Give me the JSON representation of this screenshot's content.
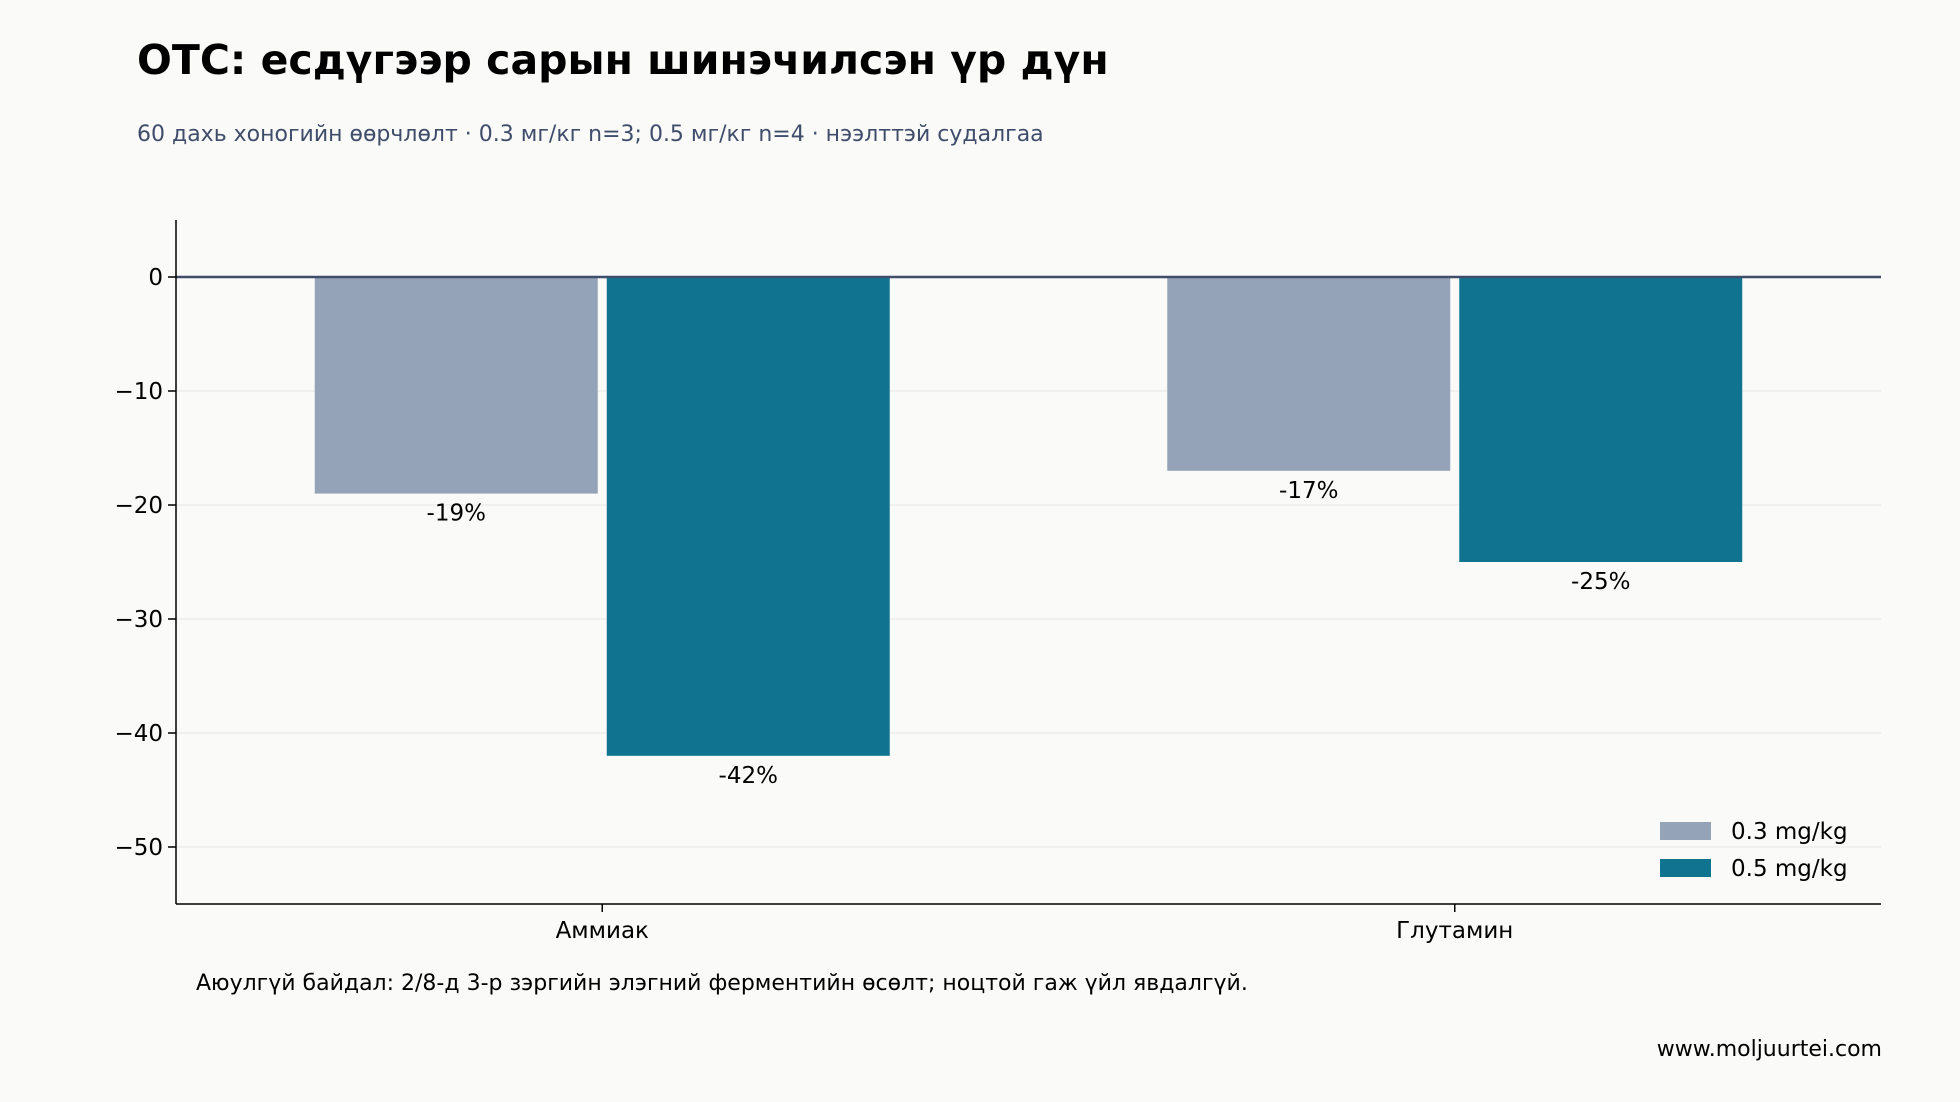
{
  "header": {
    "title": "OTC: есдүгээр сарын шинэчилсэн үр дүн",
    "subtitle": "60 дахь хоногийн өөрчлөлт · 0.3 мг/кг n=3; 0.5 мг/кг n=4 · нээлттэй судалгаа"
  },
  "footer": {
    "note": "Аюулгүй байдал: 2/8-д 3-р зэргийн элэгний ферментийн өсөлт; ноцтой гаж үйл явдалгүй.",
    "source": "www.moljuurtei.com"
  },
  "chart_data": {
    "type": "bar",
    "title": "OTC: есдүгээр сарын шинэчилсэн үр дүн",
    "subtitle": "60 дахь хоногийн өөрчлөлт · 0.3 мг/кг n=3; 0.5 мг/кг n=4 · нээлттэй судалгаа",
    "xlabel": "",
    "ylabel": "",
    "categories": [
      "Аммиак",
      "Глутамин"
    ],
    "series": [
      {
        "name": "0.3 mg/kg",
        "values": [
          -19,
          -17
        ],
        "labels": [
          "-19%",
          "-17%"
        ],
        "color": "#95a3b8"
      },
      {
        "name": "0.5 mg/kg",
        "values": [
          -42,
          -25
        ],
        "labels": [
          "-42%",
          "-25%"
        ],
        "color": "#107491"
      }
    ],
    "ylim": [
      -55,
      5
    ],
    "yticks": [
      0,
      -10,
      -20,
      -30,
      -40,
      -50
    ],
    "ytick_labels": [
      "0",
      "−10",
      "−20",
      "−30",
      "−40",
      "−50"
    ],
    "grid": "horizontal",
    "legend_position": "lower-right",
    "colors": {
      "axis": "#000000",
      "zero_line": "#3f4d6b",
      "grid": "#ececea",
      "text": "#000000"
    }
  }
}
